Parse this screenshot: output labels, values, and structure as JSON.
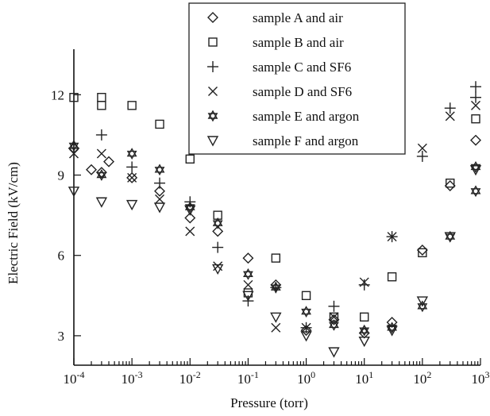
{
  "chart_data": {
    "type": "scatter",
    "title": "",
    "xlabel": "Pressure (torr)",
    "ylabel": "Electric Field (kV/cm)",
    "xscale": "log",
    "xlim": [
      0.0001,
      1000
    ],
    "ylim": [
      1.9,
      13.7
    ],
    "y_ticks": [
      3,
      6,
      9,
      12
    ],
    "y_tick_labels": [
      "3",
      "6",
      "9",
      "12"
    ],
    "x_ticks": [
      0.0001,
      0.001,
      0.01,
      0.1,
      1,
      10,
      100,
      1000
    ],
    "x_tick_labels": [
      {
        "base": "10",
        "exp": "-4"
      },
      {
        "base": "10",
        "exp": "-3"
      },
      {
        "base": "10",
        "exp": "-2"
      },
      {
        "base": "10",
        "exp": "-1"
      },
      {
        "base": "10",
        "exp": "0"
      },
      {
        "base": "10",
        "exp": "1"
      },
      {
        "base": "10",
        "exp": "2"
      },
      {
        "base": "10",
        "exp": "3"
      }
    ],
    "legend_position": "top-center",
    "grid": false,
    "series": [
      {
        "name": "sample A and air",
        "marker": "diamond",
        "points": [
          [
            0.0001,
            10.0
          ],
          [
            0.0002,
            9.2
          ],
          [
            0.0003,
            9.1
          ],
          [
            0.0004,
            9.5
          ],
          [
            0.001,
            8.9
          ],
          [
            0.003,
            8.4
          ],
          [
            0.01,
            7.4
          ],
          [
            0.03,
            6.9
          ],
          [
            0.1,
            5.9
          ],
          [
            0.3,
            4.9
          ],
          [
            1,
            3.2
          ],
          [
            3,
            3.6
          ],
          [
            10,
            3.1
          ],
          [
            30,
            3.5
          ],
          [
            100,
            6.2
          ],
          [
            300,
            8.6
          ],
          [
            1000,
            10.3
          ]
        ]
      },
      {
        "name": "sample B and air",
        "marker": "square",
        "points": [
          [
            0.0001,
            11.9
          ],
          [
            0.0003,
            11.9
          ],
          [
            0.0003,
            11.6
          ],
          [
            0.001,
            11.6
          ],
          [
            0.003,
            10.9
          ],
          [
            0.01,
            9.6
          ],
          [
            0.03,
            7.5
          ],
          [
            0.1,
            4.6
          ],
          [
            0.3,
            5.9
          ],
          [
            1,
            4.5
          ],
          [
            3,
            3.7
          ],
          [
            10,
            3.7
          ],
          [
            30,
            5.2
          ],
          [
            100,
            6.1
          ],
          [
            300,
            8.7
          ],
          [
            1000,
            11.1
          ]
        ]
      },
      {
        "name": "sample C and SF6",
        "marker": "plus",
        "points": [
          [
            0.0001,
            10.0
          ],
          [
            0.0003,
            10.5
          ],
          [
            0.001,
            9.3
          ],
          [
            0.003,
            8.7
          ],
          [
            0.01,
            8.0
          ],
          [
            0.03,
            6.3
          ],
          [
            0.1,
            4.3
          ],
          [
            0.3,
            4.8
          ],
          [
            1,
            3.3
          ],
          [
            3,
            4.1
          ],
          [
            10,
            4.9
          ],
          [
            30,
            6.7
          ],
          [
            100,
            9.7
          ],
          [
            300,
            11.5
          ],
          [
            1000,
            12.3
          ],
          [
            1000,
            11.9
          ]
        ]
      },
      {
        "name": "sample D and SF6",
        "marker": "cross",
        "points": [
          [
            0.0001,
            9.8
          ],
          [
            0.0003,
            9.8
          ],
          [
            0.001,
            8.9
          ],
          [
            0.003,
            8.1
          ],
          [
            0.01,
            6.9
          ],
          [
            0.03,
            5.6
          ],
          [
            0.1,
            4.9
          ],
          [
            0.3,
            3.3
          ],
          [
            1,
            3.3
          ],
          [
            3,
            3.7
          ],
          [
            10,
            5.0
          ],
          [
            30,
            6.7
          ],
          [
            100,
            10.0
          ],
          [
            300,
            11.2
          ],
          [
            1000,
            11.6
          ]
        ]
      },
      {
        "name": "sample E and argon",
        "marker": "star",
        "points": [
          [
            0.0001,
            10.1
          ],
          [
            0.0003,
            9.0
          ],
          [
            0.001,
            9.8
          ],
          [
            0.003,
            9.2
          ],
          [
            0.01,
            7.8
          ],
          [
            0.03,
            7.2
          ],
          [
            0.1,
            5.3
          ],
          [
            0.3,
            4.8
          ],
          [
            1,
            3.9
          ],
          [
            3,
            3.4
          ],
          [
            10,
            3.2
          ],
          [
            30,
            3.3
          ],
          [
            100,
            4.1
          ],
          [
            300,
            6.7
          ],
          [
            1000,
            8.4
          ],
          [
            1000,
            9.3
          ]
        ]
      },
      {
        "name": "sample F and argon",
        "marker": "triangle-down",
        "points": [
          [
            0.0001,
            8.4
          ],
          [
            0.0003,
            8.0
          ],
          [
            0.001,
            7.9
          ],
          [
            0.003,
            7.8
          ],
          [
            0.01,
            7.7
          ],
          [
            0.03,
            5.5
          ],
          [
            0.1,
            4.5
          ],
          [
            0.3,
            3.7
          ],
          [
            1,
            3.0
          ],
          [
            3,
            2.4
          ],
          [
            10,
            2.8
          ],
          [
            30,
            3.2
          ],
          [
            100,
            4.3
          ],
          [
            300,
            6.7
          ],
          [
            1000,
            9.2
          ]
        ]
      }
    ]
  }
}
